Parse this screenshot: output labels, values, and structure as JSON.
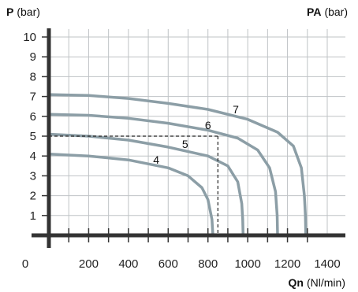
{
  "chart_data": {
    "type": "line",
    "y_axis_title": {
      "symbol": "P",
      "unit": "(bar)"
    },
    "y2_axis_title": {
      "symbol": "PA",
      "unit": "(bar)"
    },
    "x_axis_title": {
      "symbol": "Qn",
      "unit": "(Nl/min)"
    },
    "xlim": [
      0,
      1400
    ],
    "ylim": [
      0,
      10
    ],
    "x_ticks": [
      0,
      200,
      400,
      600,
      800,
      1000,
      1200,
      1400
    ],
    "y_ticks": [
      1,
      2,
      3,
      4,
      5,
      6,
      7,
      8,
      9,
      10
    ],
    "grid": true,
    "series": [
      {
        "name": "4",
        "points": [
          [
            0,
            4.1
          ],
          [
            200,
            4.0
          ],
          [
            400,
            3.8
          ],
          [
            600,
            3.4
          ],
          [
            700,
            3.0
          ],
          [
            770,
            2.4
          ],
          [
            800,
            1.8
          ],
          [
            820,
            0.8
          ],
          [
            825,
            0
          ]
        ]
      },
      {
        "name": "5",
        "points": [
          [
            0,
            5.1
          ],
          [
            200,
            5.0
          ],
          [
            400,
            4.8
          ],
          [
            600,
            4.45
          ],
          [
            800,
            4.0
          ],
          [
            900,
            3.5
          ],
          [
            950,
            2.7
          ],
          [
            970,
            1.6
          ],
          [
            975,
            0.8
          ],
          [
            977,
            0
          ]
        ]
      },
      {
        "name": "6",
        "points": [
          [
            0,
            6.1
          ],
          [
            200,
            6.05
          ],
          [
            400,
            5.9
          ],
          [
            600,
            5.65
          ],
          [
            800,
            5.3
          ],
          [
            950,
            4.9
          ],
          [
            1050,
            4.3
          ],
          [
            1110,
            3.4
          ],
          [
            1140,
            2.2
          ],
          [
            1148,
            1.0
          ],
          [
            1150,
            0
          ]
        ]
      },
      {
        "name": "7",
        "points": [
          [
            0,
            7.1
          ],
          [
            200,
            7.05
          ],
          [
            400,
            6.9
          ],
          [
            600,
            6.65
          ],
          [
            800,
            6.35
          ],
          [
            1000,
            5.85
          ],
          [
            1150,
            5.2
          ],
          [
            1230,
            4.5
          ],
          [
            1270,
            3.4
          ],
          [
            1285,
            2.0
          ],
          [
            1290,
            1.0
          ],
          [
            1292,
            0
          ]
        ]
      }
    ],
    "curve_label_positions": [
      {
        "name": "4",
        "x": 540,
        "y": 3.8
      },
      {
        "name": "5",
        "x": 685,
        "y": 4.6
      },
      {
        "name": "6",
        "x": 800,
        "y": 5.55
      },
      {
        "name": "7",
        "x": 940,
        "y": 6.35
      }
    ],
    "reference_point": {
      "x": 850,
      "y": 5.0
    }
  },
  "colors": {
    "curve": "#8c9ea6",
    "grid": "#bfc3c6",
    "axis": "#333333",
    "reference": "#222222"
  }
}
